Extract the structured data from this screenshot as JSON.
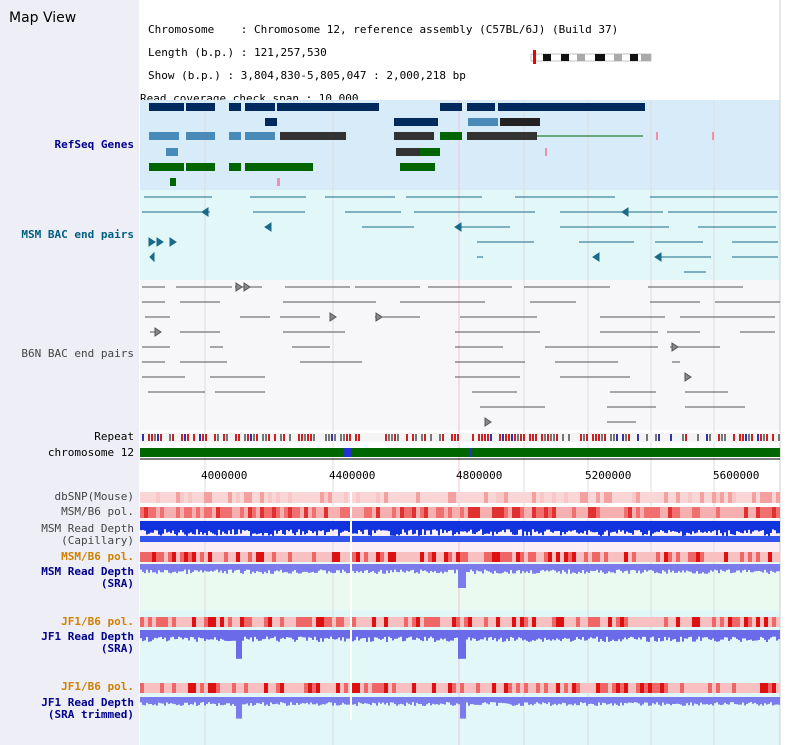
{
  "title": "Map View",
  "info": {
    "chromosome": "Chromosome    : Chromosome 12, reference assembly (C57BL/6J) (Build 37)",
    "length": "Length (b.p.) : 121,257,530",
    "show": "Show (b.p.) : 3,804,830-5,805,047 : 2,000,218 bp",
    "coverage": "Read coverage check span : 10,000"
  },
  "tracks": {
    "refseq": "RefSeq Genes",
    "msm_bac": "MSM BAC end pairs",
    "b6n_bac": "B6N BAC end pairs",
    "repeat": "Repeat",
    "chromosome": "chromosome 12",
    "dbsnp": "dbSNP(Mouse)",
    "msm_b6_pol_1": "MSM/B6 pol.",
    "msm_read_cap_1": "MSM Read Depth",
    "msm_read_cap_2": "(Capillary)",
    "msm_b6_pol_2": "MSM/B6 pol.",
    "msm_read_sra_1": "MSM Read Depth",
    "msm_read_sra_2": "(SRA)",
    "jf1_pol_1": "JF1/B6 pol.",
    "jf1_read_sra_1": "JF1 Read Depth",
    "jf1_read_sra_2": "(SRA)",
    "jf1_pol_2": "JF1/B6 pol.",
    "jf1_read_trim_1": "JF1 Read Depth",
    "jf1_read_trim_2": "(SRA trimmed)"
  },
  "axis_ticks": [
    "4000000",
    "4400000",
    "4800000",
    "5200000",
    "5600000"
  ],
  "colors": {
    "refseq_dark": "#002a5e",
    "refseq_light": "#4a8ab8",
    "refseq_green": "#006400",
    "msm_bac": "#1a6a8a",
    "b6n_bac": "#555555",
    "chrom_green": "#006600",
    "depth_blue": "#0000dd",
    "depth_light": "#7777ee",
    "snp_red": "#ee3333"
  }
}
